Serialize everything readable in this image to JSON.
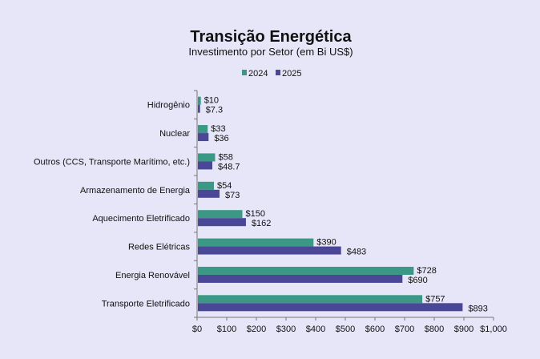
{
  "chart_data": {
    "type": "bar",
    "orientation": "horizontal",
    "title": "Transição Energética",
    "subtitle": "Investimento por Setor (em Bi US$)",
    "categories": [
      "Hidrogênio",
      "Nuclear",
      "Outros (CCS, Transporte Marítimo, etc.)",
      "Armazenamento de Energia",
      "Aquecimento Eletrificado",
      "Redes Elétricas",
      "Energia Renovável",
      "Transporte Eletrificado"
    ],
    "series": [
      {
        "name": "2024",
        "color": "#3a9884",
        "values": [
          10,
          33,
          58,
          54,
          150,
          390,
          728,
          757
        ],
        "labels": [
          "$10",
          "$33",
          "$58",
          "$54",
          "$150",
          "$390",
          "$728",
          "$757"
        ]
      },
      {
        "name": "2025",
        "color": "#4a4896",
        "values": [
          7.3,
          36,
          48.7,
          73,
          162,
          483,
          690,
          893
        ],
        "labels": [
          "$7.3",
          "$36",
          "$48.7",
          "$73",
          "$162",
          "$483",
          "$690",
          "$893"
        ]
      }
    ],
    "xlim": [
      0,
      1000
    ],
    "xticks": [
      0,
      100,
      200,
      300,
      400,
      500,
      600,
      700,
      800,
      900,
      1000
    ],
    "xtick_labels": [
      "$0",
      "$100",
      "$200",
      "$300",
      "$400",
      "$500",
      "$600",
      "$700",
      "$800",
      "$900",
      "$1,000"
    ],
    "legend": "top-center",
    "grid": false,
    "background": "#e6e6f8"
  }
}
